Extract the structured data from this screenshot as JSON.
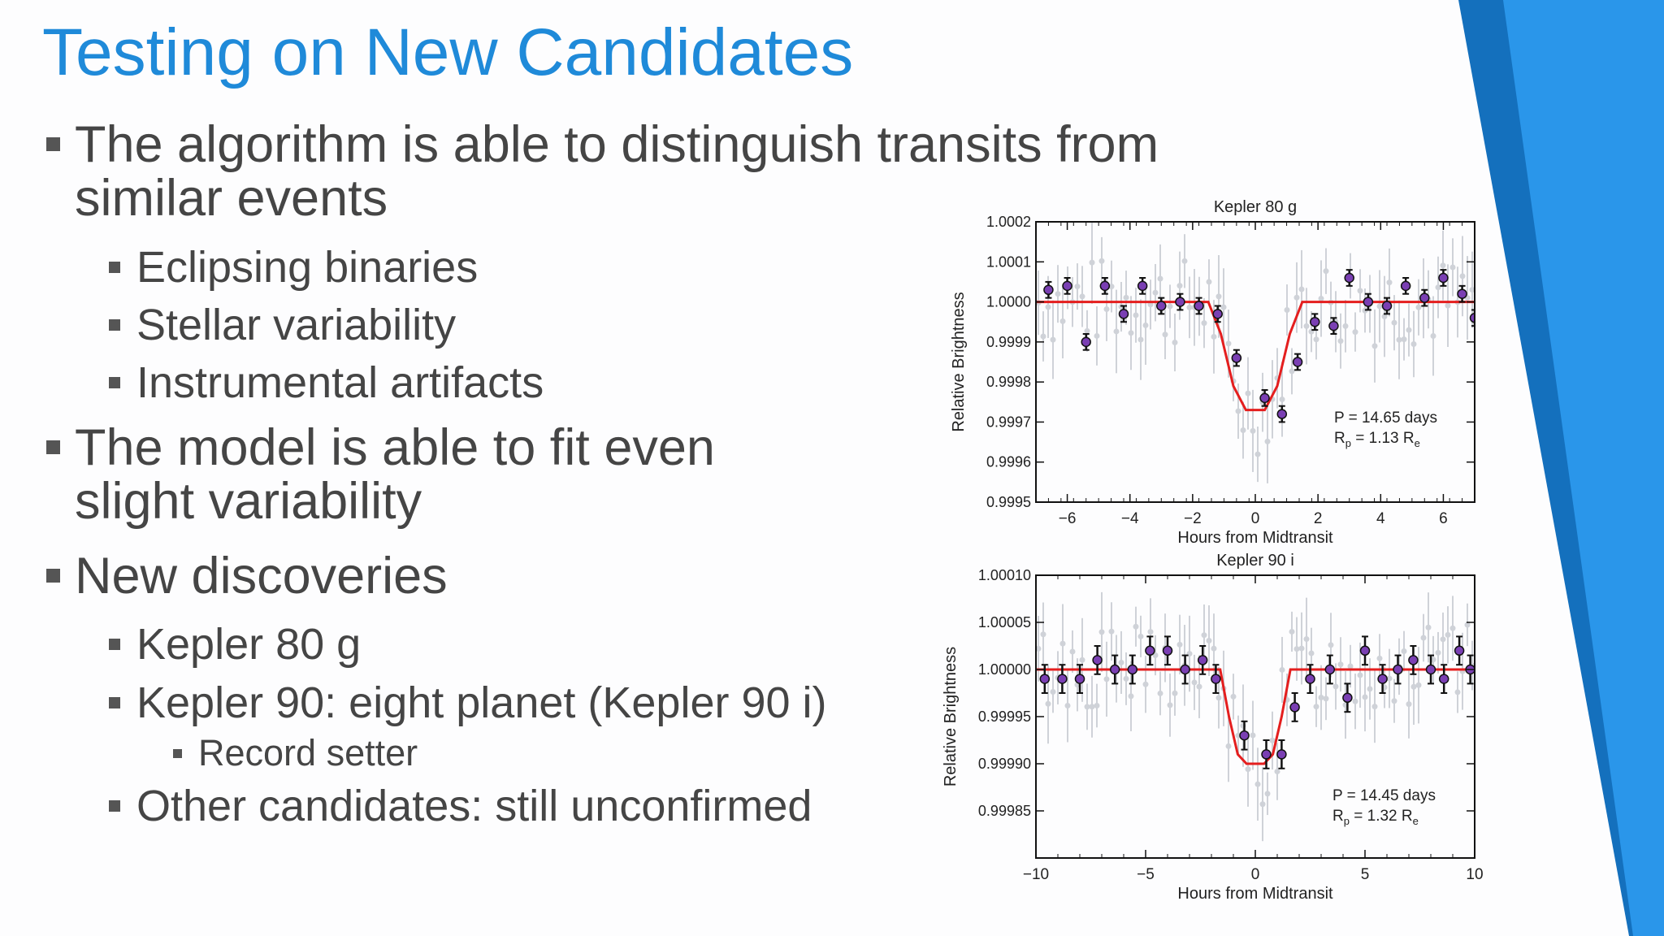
{
  "slide": {
    "title": "Testing on New Candidates",
    "bullets": [
      {
        "level": 1,
        "lines": [
          "The algorithm is able to distinguish transits from",
          "similar events"
        ]
      },
      {
        "level": 2,
        "lines": [
          "Eclipsing binaries"
        ]
      },
      {
        "level": 2,
        "lines": [
          "Stellar variability"
        ]
      },
      {
        "level": 2,
        "lines": [
          "Instrumental artifacts"
        ]
      },
      {
        "level": 1,
        "lines": [
          "The model is able to fit even",
          "slight variability"
        ]
      },
      {
        "level": 1,
        "lines": [
          "New discoveries"
        ]
      },
      {
        "level": 2,
        "lines": [
          "Kepler 80 g"
        ]
      },
      {
        "level": 2,
        "lines": [
          "Kepler 90: eight planet (Kepler 90 i)"
        ]
      },
      {
        "level": 3,
        "lines": [
          "Record setter"
        ]
      },
      {
        "level": 2,
        "lines": [
          "Other candidates: still unconfirmed"
        ]
      }
    ]
  },
  "colors": {
    "title": "#1f8ad9",
    "body_text": "#454545",
    "accent_blue_light": "#2a96ea",
    "accent_blue_dark": "#1470bd",
    "model_line": "#e41e1e",
    "data_point": "#7a3fb3",
    "raw_points": "#cfd2d8"
  },
  "chart_data": [
    {
      "type": "scatter",
      "title": "Kepler 80 g",
      "xlabel": "Hours from Midtransit",
      "ylabel": "Relative Brightness",
      "xlim": [
        -7,
        7
      ],
      "ylim": [
        0.9995,
        1.0002
      ],
      "xticks": [
        -6,
        -4,
        -2,
        0,
        2,
        4,
        6
      ],
      "xtick_labels": [
        "−6",
        "−4",
        "−2",
        "0",
        "2",
        "4",
        "6"
      ],
      "yticks": [
        1.0002,
        1.0001,
        1.0,
        0.9999,
        0.9998,
        0.9997,
        0.9996,
        0.9995
      ],
      "ytick_labels": [
        "1.0002",
        "1.0001",
        "1.0000",
        "0.9999",
        "0.9998",
        "0.9997",
        "0.9996",
        "0.9995"
      ],
      "annotation_lines": [
        {
          "text": "P = 14.65 days",
          "sub": "",
          "tail": ""
        },
        {
          "text": "R",
          "sub": "p",
          "tail": " = 1.13 R",
          "sub2": "e"
        }
      ],
      "binned_points": {
        "x": [
          -6.6,
          -6.0,
          -5.4,
          -4.8,
          -4.2,
          -3.6,
          -3.0,
          -2.4,
          -1.8,
          -1.2,
          -0.6,
          0.3,
          0.85,
          1.35,
          1.9,
          2.5,
          3.0,
          3.6,
          4.2,
          4.8,
          5.4,
          6.0,
          6.6,
          7.0
        ],
        "y": [
          1.00003,
          1.00004,
          0.9999,
          1.00004,
          0.99997,
          1.00004,
          0.99999,
          1.0,
          0.99999,
          0.99997,
          0.99986,
          0.99976,
          0.99972,
          0.99985,
          0.99995,
          0.99994,
          1.00006,
          1.0,
          0.99999,
          1.00004,
          1.00001,
          1.00006,
          1.00002,
          0.99996
        ],
        "err": [
          2e-05,
          2e-05,
          2e-05,
          2e-05,
          2e-05,
          2e-05,
          2e-05,
          2e-05,
          2e-05,
          2e-05,
          2e-05,
          2e-05,
          2e-05,
          2e-05,
          2e-05,
          2e-05,
          2e-05,
          2e-05,
          2e-05,
          2e-05,
          2e-05,
          2e-05,
          2e-05,
          2e-05
        ]
      },
      "model_line": {
        "x": [
          -7,
          -1.5,
          -1.1,
          -0.7,
          -0.3,
          0.3,
          0.7,
          1.1,
          1.5,
          7
        ],
        "y": [
          1.0,
          1.0,
          0.99992,
          0.99979,
          0.99973,
          0.99973,
          0.99979,
          0.99992,
          1.0,
          1.0
        ]
      }
    },
    {
      "type": "scatter",
      "title": "Kepler 90 i",
      "xlabel": "Hours from Midtransit",
      "ylabel": "Relative Brightness",
      "xlim": [
        -10,
        10
      ],
      "ylim": [
        0.9998,
        1.0001
      ],
      "xticks": [
        -10,
        -5,
        0,
        5,
        10
      ],
      "xtick_labels": [
        "−10",
        "−5",
        "0",
        "5",
        "10"
      ],
      "yticks": [
        1.0001,
        1.00005,
        1.0,
        0.99995,
        0.9999,
        0.99985
      ],
      "ytick_labels": [
        "1.00010",
        "1.00005",
        "1.00000",
        "0.99995",
        "0.99990",
        "0.99985"
      ],
      "annotation_lines": [
        {
          "text": "P = 14.45 days",
          "sub": "",
          "tail": ""
        },
        {
          "text": "R",
          "sub": "p",
          "tail": " = 1.32 R",
          "sub2": "e"
        }
      ],
      "binned_points": {
        "x": [
          -9.6,
          -8.8,
          -8.0,
          -7.2,
          -6.4,
          -5.6,
          -4.8,
          -4.0,
          -3.2,
          -2.4,
          -1.8,
          -0.5,
          0.5,
          1.2,
          1.8,
          2.5,
          3.4,
          4.2,
          5.0,
          5.8,
          6.5,
          7.2,
          8.0,
          8.6,
          9.3,
          9.8
        ],
        "y": [
          0.99999,
          0.99999,
          0.99999,
          1.00001,
          1.0,
          1.0,
          1.00002,
          1.00002,
          1.0,
          1.00001,
          0.99999,
          0.99993,
          0.99991,
          0.99991,
          0.99996,
          0.99999,
          1.0,
          0.99997,
          1.00002,
          0.99999,
          1.0,
          1.00001,
          1.0,
          0.99999,
          1.00002,
          1.0
        ],
        "err": [
          1.5e-05,
          1.5e-05,
          1.5e-05,
          1.5e-05,
          1.5e-05,
          1.5e-05,
          1.5e-05,
          1.5e-05,
          1.5e-05,
          1.5e-05,
          1.5e-05,
          1.5e-05,
          1.5e-05,
          1.5e-05,
          1.5e-05,
          1.5e-05,
          1.5e-05,
          1.5e-05,
          1.5e-05,
          1.5e-05,
          1.5e-05,
          1.5e-05,
          1.5e-05,
          1.5e-05,
          1.5e-05,
          1.5e-05
        ]
      },
      "model_line": {
        "x": [
          -10,
          -1.6,
          -1.2,
          -0.8,
          -0.4,
          0.4,
          0.8,
          1.2,
          1.6,
          10
        ],
        "y": [
          1.0,
          1.0,
          0.99995,
          0.99991,
          0.9999,
          0.9999,
          0.99991,
          0.99995,
          1.0,
          1.0
        ]
      }
    }
  ]
}
